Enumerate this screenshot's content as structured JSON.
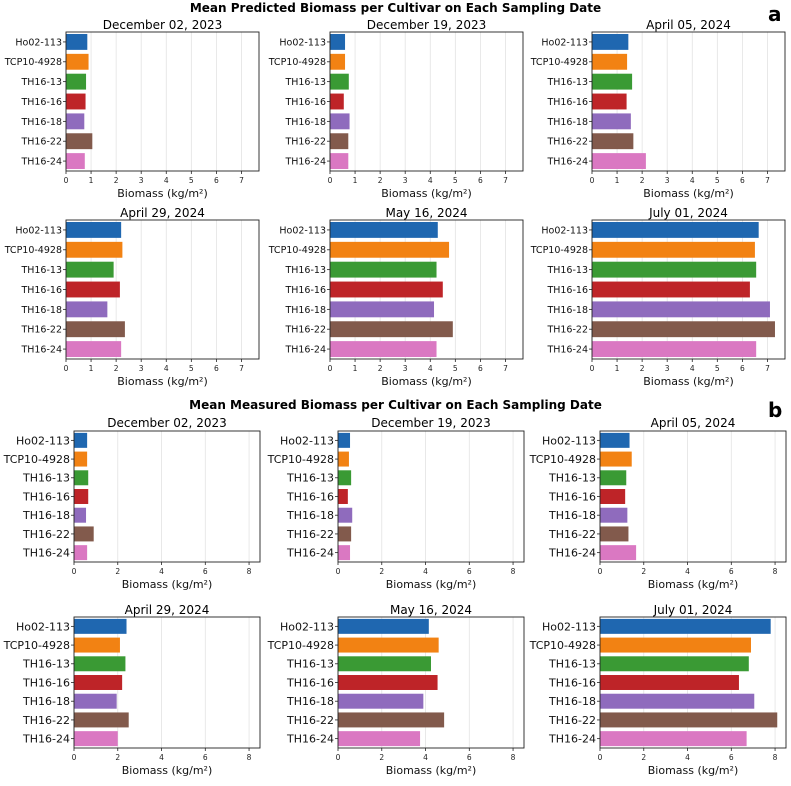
{
  "sections": [
    {
      "title": "Mean Predicted Biomass per Cultivar on Each Sampling Date",
      "letter": "a"
    },
    {
      "title": "Mean Measured Biomass per Cultivar on Each Sampling Date",
      "letter": "b"
    }
  ],
  "colors": [
    "#1f67b0",
    "#f28213",
    "#3a9a34",
    "#be2428",
    "#8f6bbd",
    "#825a4c",
    "#da78c2"
  ],
  "chart_data": [
    {
      "type": "bar",
      "orientation": "horizontal",
      "section": "a",
      "title": "December 02, 2023",
      "categories": [
        "Ho02-113",
        "TCP10-4928",
        "TH16-13",
        "TH16-16",
        "TH16-18",
        "TH16-22",
        "TH16-24"
      ],
      "values": [
        0.85,
        0.9,
        0.8,
        0.78,
        0.73,
        1.05,
        0.75
      ],
      "xlabel": "Biomass (kg/m²)",
      "xlim": [
        0,
        7.7
      ],
      "xticks": [
        0,
        1,
        2,
        3,
        4,
        5,
        6,
        7
      ],
      "grid": true
    },
    {
      "type": "bar",
      "orientation": "horizontal",
      "section": "a",
      "title": "December 19, 2023",
      "categories": [
        "Ho02-113",
        "TCP10-4928",
        "TH16-13",
        "TH16-16",
        "TH16-18",
        "TH16-22",
        "TH16-24"
      ],
      "values": [
        0.6,
        0.6,
        0.75,
        0.55,
        0.78,
        0.73,
        0.73
      ],
      "xlabel": "Biomass (kg/m²)",
      "xlim": [
        0,
        7.7
      ],
      "xticks": [
        0,
        1,
        2,
        3,
        4,
        5,
        6,
        7
      ],
      "grid": true
    },
    {
      "type": "bar",
      "orientation": "horizontal",
      "section": "a",
      "title": "April 05, 2024",
      "categories": [
        "Ho02-113",
        "TCP10-4928",
        "TH16-13",
        "TH16-16",
        "TH16-18",
        "TH16-22",
        "TH16-24"
      ],
      "values": [
        1.45,
        1.4,
        1.6,
        1.38,
        1.55,
        1.65,
        2.15
      ],
      "xlabel": "Biomass (kg/m²)",
      "xlim": [
        0,
        7.7
      ],
      "xticks": [
        0,
        1,
        2,
        3,
        4,
        5,
        6,
        7
      ],
      "grid": true
    },
    {
      "type": "bar",
      "orientation": "horizontal",
      "section": "a",
      "title": "April 29, 2024",
      "categories": [
        "Ho02-113",
        "TCP10-4928",
        "TH16-13",
        "TH16-16",
        "TH16-18",
        "TH16-22",
        "TH16-24"
      ],
      "values": [
        2.2,
        2.25,
        1.9,
        2.15,
        1.65,
        2.35,
        2.2
      ],
      "xlabel": "Biomass (kg/m²)",
      "xlim": [
        0,
        7.7
      ],
      "xticks": [
        0,
        1,
        2,
        3,
        4,
        5,
        6,
        7
      ],
      "grid": true
    },
    {
      "type": "bar",
      "orientation": "horizontal",
      "section": "a",
      "title": "May 16, 2024",
      "categories": [
        "Ho02-113",
        "TCP10-4928",
        "TH16-13",
        "TH16-16",
        "TH16-18",
        "TH16-22",
        "TH16-24"
      ],
      "values": [
        4.3,
        4.75,
        4.25,
        4.5,
        4.15,
        4.9,
        4.25
      ],
      "xlabel": "Biomass (kg/m²)",
      "xlim": [
        0,
        7.7
      ],
      "xticks": [
        0,
        1,
        2,
        3,
        4,
        5,
        6,
        7
      ],
      "grid": true
    },
    {
      "type": "bar",
      "orientation": "horizontal",
      "section": "a",
      "title": "July 01, 2024",
      "categories": [
        "Ho02-113",
        "TCP10-4928",
        "TH16-13",
        "TH16-16",
        "TH16-18",
        "TH16-22",
        "TH16-24"
      ],
      "values": [
        6.65,
        6.5,
        6.55,
        6.3,
        7.1,
        7.3,
        6.55
      ],
      "xlabel": "Biomass (kg/m²)",
      "xlim": [
        0,
        7.7
      ],
      "xticks": [
        0,
        1,
        2,
        3,
        4,
        5,
        6,
        7
      ],
      "grid": true
    },
    {
      "type": "bar",
      "orientation": "horizontal",
      "section": "b",
      "title": "December 02, 2023",
      "categories": [
        "Ho02-113",
        "TCP10-4928",
        "TH16-13",
        "TH16-16",
        "TH16-18",
        "TH16-22",
        "TH16-24"
      ],
      "values": [
        0.6,
        0.6,
        0.65,
        0.65,
        0.55,
        0.9,
        0.6
      ],
      "xlabel": "Biomass (kg/m²)",
      "xlim": [
        0,
        8.5
      ],
      "xticks": [
        0,
        2,
        4,
        6,
        8
      ],
      "grid": true
    },
    {
      "type": "bar",
      "orientation": "horizontal",
      "section": "b",
      "title": "December 19, 2023",
      "categories": [
        "Ho02-113",
        "TCP10-4928",
        "TH16-13",
        "TH16-16",
        "TH16-18",
        "TH16-22",
        "TH16-24"
      ],
      "values": [
        0.55,
        0.5,
        0.6,
        0.45,
        0.65,
        0.6,
        0.55
      ],
      "xlabel": "Biomass (kg/m²)",
      "xlim": [
        0,
        8.5
      ],
      "xticks": [
        0,
        2,
        4,
        6,
        8
      ],
      "grid": true
    },
    {
      "type": "bar",
      "orientation": "horizontal",
      "section": "b",
      "title": "April 05, 2024",
      "categories": [
        "Ho02-113",
        "TCP10-4928",
        "TH16-13",
        "TH16-16",
        "TH16-18",
        "TH16-22",
        "TH16-24"
      ],
      "values": [
        1.35,
        1.45,
        1.2,
        1.15,
        1.25,
        1.3,
        1.65
      ],
      "xlabel": "Biomass (kg/m²)",
      "xlim": [
        0,
        8.5
      ],
      "xticks": [
        0,
        2,
        4,
        6,
        8
      ],
      "grid": true
    },
    {
      "type": "bar",
      "orientation": "horizontal",
      "section": "b",
      "title": "April 29, 2024",
      "categories": [
        "Ho02-113",
        "TCP10-4928",
        "TH16-13",
        "TH16-16",
        "TH16-18",
        "TH16-22",
        "TH16-24"
      ],
      "values": [
        2.4,
        2.1,
        2.35,
        2.2,
        1.95,
        2.5,
        2.0
      ],
      "xlabel": "Biomass (kg/m²)",
      "xlim": [
        0,
        8.5
      ],
      "xticks": [
        0,
        2,
        4,
        6,
        8
      ],
      "grid": true
    },
    {
      "type": "bar",
      "orientation": "horizontal",
      "section": "b",
      "title": "May 16, 2024",
      "categories": [
        "Ho02-113",
        "TCP10-4928",
        "TH16-13",
        "TH16-16",
        "TH16-18",
        "TH16-22",
        "TH16-24"
      ],
      "values": [
        4.15,
        4.6,
        4.25,
        4.55,
        3.9,
        4.85,
        3.75
      ],
      "xlabel": "Biomass (kg/m²)",
      "xlim": [
        0,
        8.5
      ],
      "xticks": [
        0,
        2,
        4,
        6,
        8
      ],
      "grid": true
    },
    {
      "type": "bar",
      "orientation": "horizontal",
      "section": "b",
      "title": "July 01, 2024",
      "categories": [
        "Ho02-113",
        "TCP10-4928",
        "TH16-13",
        "TH16-16",
        "TH16-18",
        "TH16-22",
        "TH16-24"
      ],
      "values": [
        7.8,
        6.9,
        6.8,
        6.35,
        7.05,
        8.1,
        6.7
      ],
      "xlabel": "Biomass (kg/m²)",
      "xlim": [
        0,
        8.5
      ],
      "xticks": [
        0,
        2,
        4,
        6,
        8
      ],
      "grid": true
    }
  ]
}
